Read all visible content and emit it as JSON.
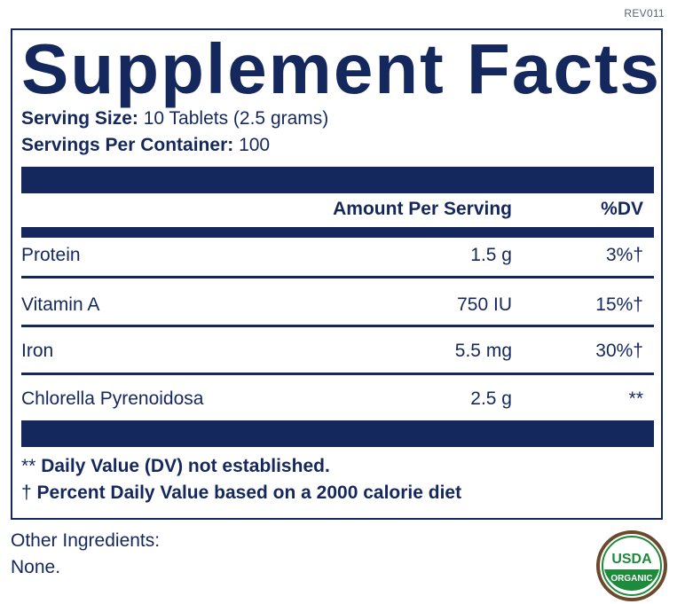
{
  "label": {
    "revision": "REV011",
    "title": "Supplement Facts",
    "serving_size_label": "Serving Size:",
    "serving_size_value": "10 Tablets (2.5 grams)",
    "servings_per_container_label": "Servings Per Container:",
    "servings_per_container_value": "100",
    "header_amount": "Amount Per Serving",
    "header_dv": "%DV",
    "rows": [
      {
        "name": "Protein",
        "amount": "1.5 g",
        "dv": "3%†"
      },
      {
        "name": "Vitamin A",
        "amount": "750 IU",
        "dv": "15%†"
      },
      {
        "name": "Iron",
        "amount": "5.5 mg",
        "dv": "30%†"
      },
      {
        "name": "Chlorella Pyrenoidosa",
        "amount": "2.5 g",
        "dv": "**"
      }
    ],
    "footnote_1_mark": "**",
    "footnote_1_text": "Daily Value (DV) not established.",
    "footnote_2_mark": "†",
    "footnote_2_text": "Percent Daily Value based on a 2000 calorie diet"
  },
  "other_ingredients": {
    "label": "Other Ingredients:",
    "value": "None."
  },
  "usda_seal": {
    "top_text": "USDA",
    "bottom_text": "ORGANIC"
  },
  "colors": {
    "navy": "#14285e",
    "seal_green": "#1e8a3c",
    "seal_brown": "#6b4a2b"
  }
}
